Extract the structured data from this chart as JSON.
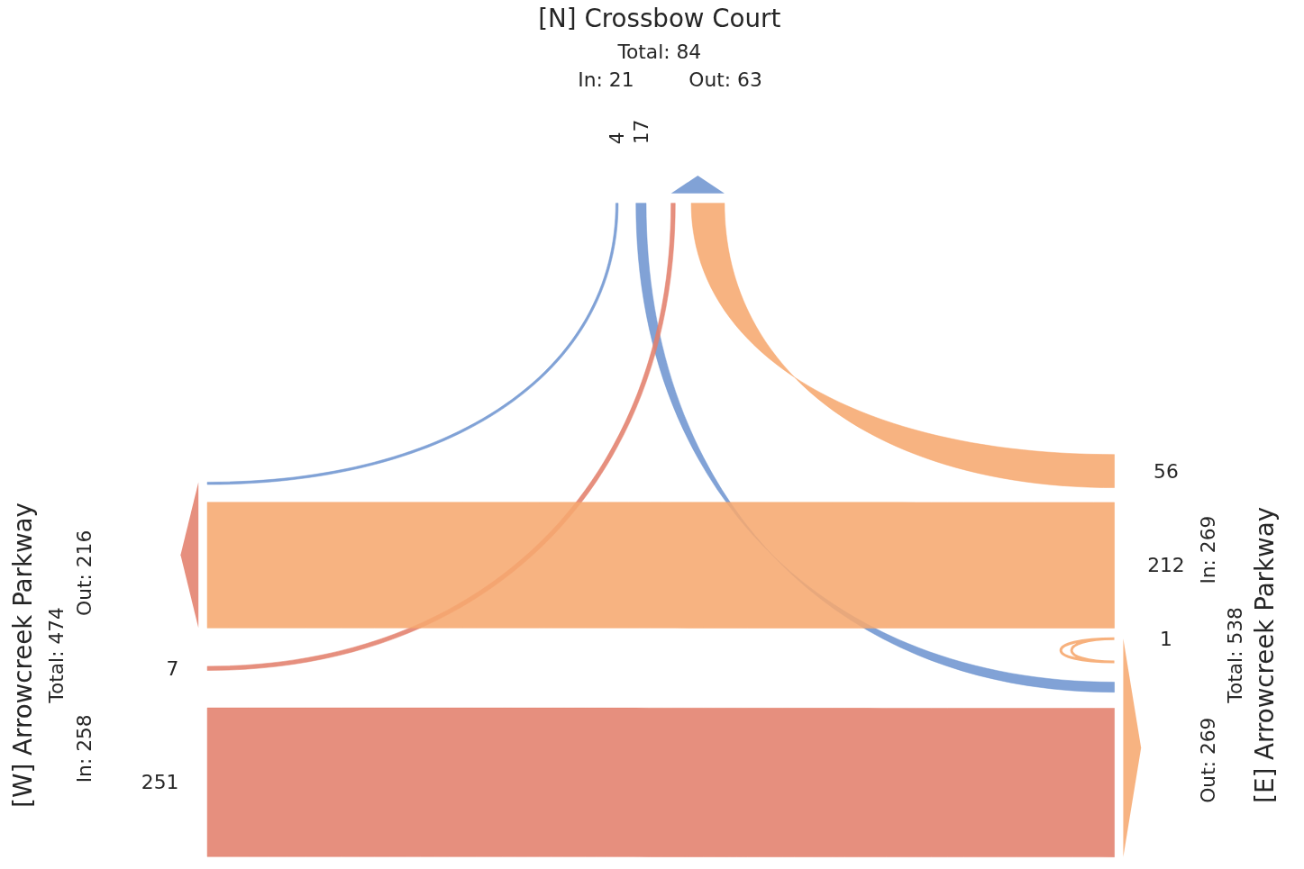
{
  "chart_data": {
    "type": "other",
    "categories": [
      "[N] Crossbow Court",
      "[W] Arrowcreek Parkway",
      "[E] Arrowcreek Parkway"
    ],
    "series": [
      {
        "values": [
          null,
          7,
          56
        ],
        "colors": [
          null,
          "#e2806c",
          "#f6a86f"
        ]
      },
      {
        "values": [
          4,
          null,
          212
        ],
        "colors": [
          "#6f95d0",
          null,
          "#f6a86f"
        ]
      },
      {
        "values": [
          17,
          251,
          1
        ],
        "colors": [
          "#6f95d0",
          "#e2806c",
          "#f6a86f"
        ]
      }
    ],
    "data_labels": true,
    "annotations": [
      "Total: 84",
      "In: 21",
      "Out: 63",
      "Total: 474",
      "In: 258",
      "Out: 216",
      "Total: 538",
      "In: 269",
      "Out: 269"
    ]
  }
}
